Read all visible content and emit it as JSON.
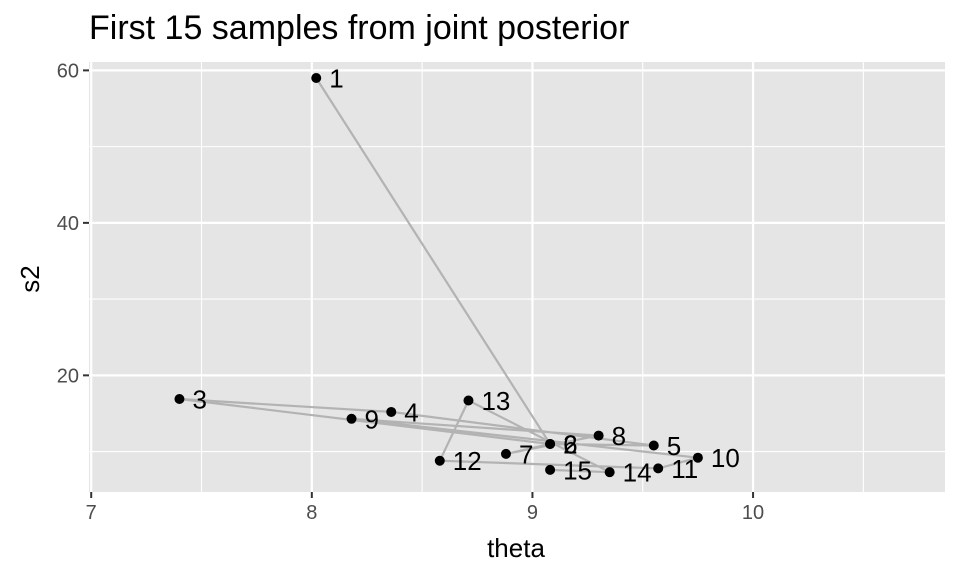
{
  "chart_data": {
    "type": "scatter",
    "title": "First 15 samples from joint posterior",
    "xlabel": "theta",
    "ylabel": "s2",
    "xlim": [
      6.99,
      10.87
    ],
    "ylim": [
      4.7,
      61.1
    ],
    "x_ticks": [
      "7",
      "8",
      "9",
      "10"
    ],
    "y_ticks": [
      "20",
      "40",
      "60"
    ],
    "grid": true,
    "connect_points_in_order": true,
    "path_color": "#b3b3b3",
    "point_color": "#000000",
    "panel_background": "#e5e5e5",
    "points": [
      {
        "label": "1",
        "x": 8.02,
        "y": 59.0
      },
      {
        "label": "2",
        "x": 9.08,
        "y": 11.0
      },
      {
        "label": "3",
        "x": 7.4,
        "y": 16.9
      },
      {
        "label": "4",
        "x": 8.36,
        "y": 15.2
      },
      {
        "label": "5",
        "x": 9.55,
        "y": 10.8
      },
      {
        "label": "6",
        "x": 9.08,
        "y": 11.0
      },
      {
        "label": "7",
        "x": 8.88,
        "y": 9.7
      },
      {
        "label": "8",
        "x": 9.3,
        "y": 12.1
      },
      {
        "label": "9",
        "x": 8.18,
        "y": 14.3
      },
      {
        "label": "10",
        "x": 9.75,
        "y": 9.2
      },
      {
        "label": "11",
        "x": 9.57,
        "y": 7.8
      },
      {
        "label": "12",
        "x": 8.58,
        "y": 8.8
      },
      {
        "label": "13",
        "x": 8.71,
        "y": 16.7
      },
      {
        "label": "14",
        "x": 9.35,
        "y": 7.3
      },
      {
        "label": "15",
        "x": 9.08,
        "y": 7.6
      }
    ]
  }
}
